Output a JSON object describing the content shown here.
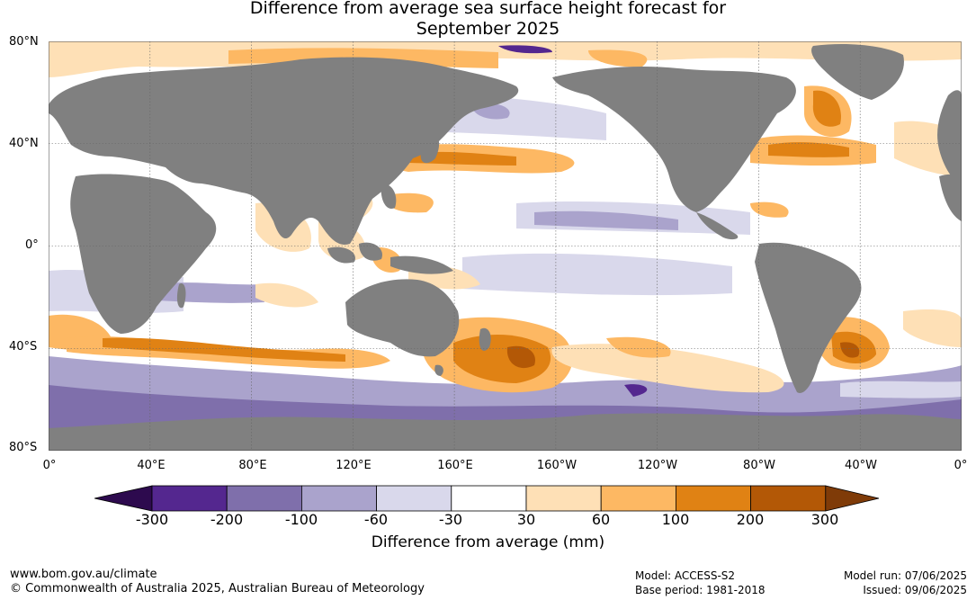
{
  "title": {
    "line1": "Difference from average sea surface height forecast for",
    "line2": "September 2025"
  },
  "map": {
    "lat_labels": [
      "80°N",
      "40°N",
      "0°",
      "40°S",
      "80°S"
    ],
    "lon_labels": [
      "0°",
      "40°E",
      "80°E",
      "120°E",
      "160°E",
      "160°W",
      "120°W",
      "80°W",
      "40°W",
      "0°"
    ],
    "colors": {
      "land": "#808080",
      "ocean": "#ffffff",
      "grid": "#666666"
    }
  },
  "legend": {
    "label": "Difference from average (mm)",
    "ticks": [
      "-300",
      "-200",
      "-100",
      "-60",
      "-30",
      "30",
      "60",
      "100",
      "200",
      "300"
    ],
    "colors": [
      "#2d0a4e",
      "#54278f",
      "#7f6fab",
      "#aaa3cc",
      "#d9d8eb",
      "#ffffff",
      "#fee0b6",
      "#fdb863",
      "#e08214",
      "#b35806",
      "#7f3b08"
    ]
  },
  "footer": {
    "url": "www.bom.gov.au/climate",
    "copyright": "© Commonwealth of Australia 2025, Australian Bureau of Meteorology",
    "model": "Model: ACCESS-S2",
    "base_period": "Base period: 1981-2018",
    "model_run": "Model run: 07/06/2025",
    "issued": "Issued: 09/06/2025"
  }
}
